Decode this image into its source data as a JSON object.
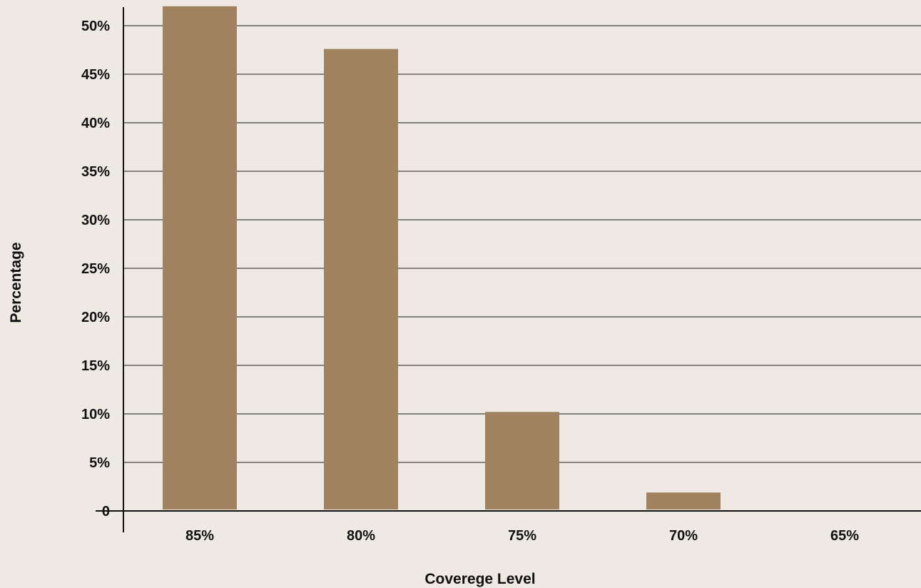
{
  "chart_data": {
    "type": "bar",
    "categories": [
      "85%",
      "80%",
      "75%",
      "70%",
      "65%"
    ],
    "values": [
      52.0,
      47.6,
      10.2,
      1.9,
      0
    ],
    "y_ticks": [
      0,
      5,
      10,
      15,
      20,
      25,
      30,
      35,
      40,
      45,
      50
    ],
    "y_tick_labels": [
      "0",
      "5%",
      "10%",
      "15%",
      "20%",
      "25%",
      "30%",
      "35%",
      "40%",
      "45%",
      "50%"
    ],
    "ylim": [
      0,
      50
    ],
    "xlabel": "Coverege Level",
    "ylabel": "Percentage",
    "grid": "horizontal",
    "legend": "none",
    "colors": {
      "background": "#eeeae3",
      "bar": "#a0825f",
      "grid": "#1a1a1a",
      "axis": "#111111",
      "text": "#111111"
    }
  }
}
